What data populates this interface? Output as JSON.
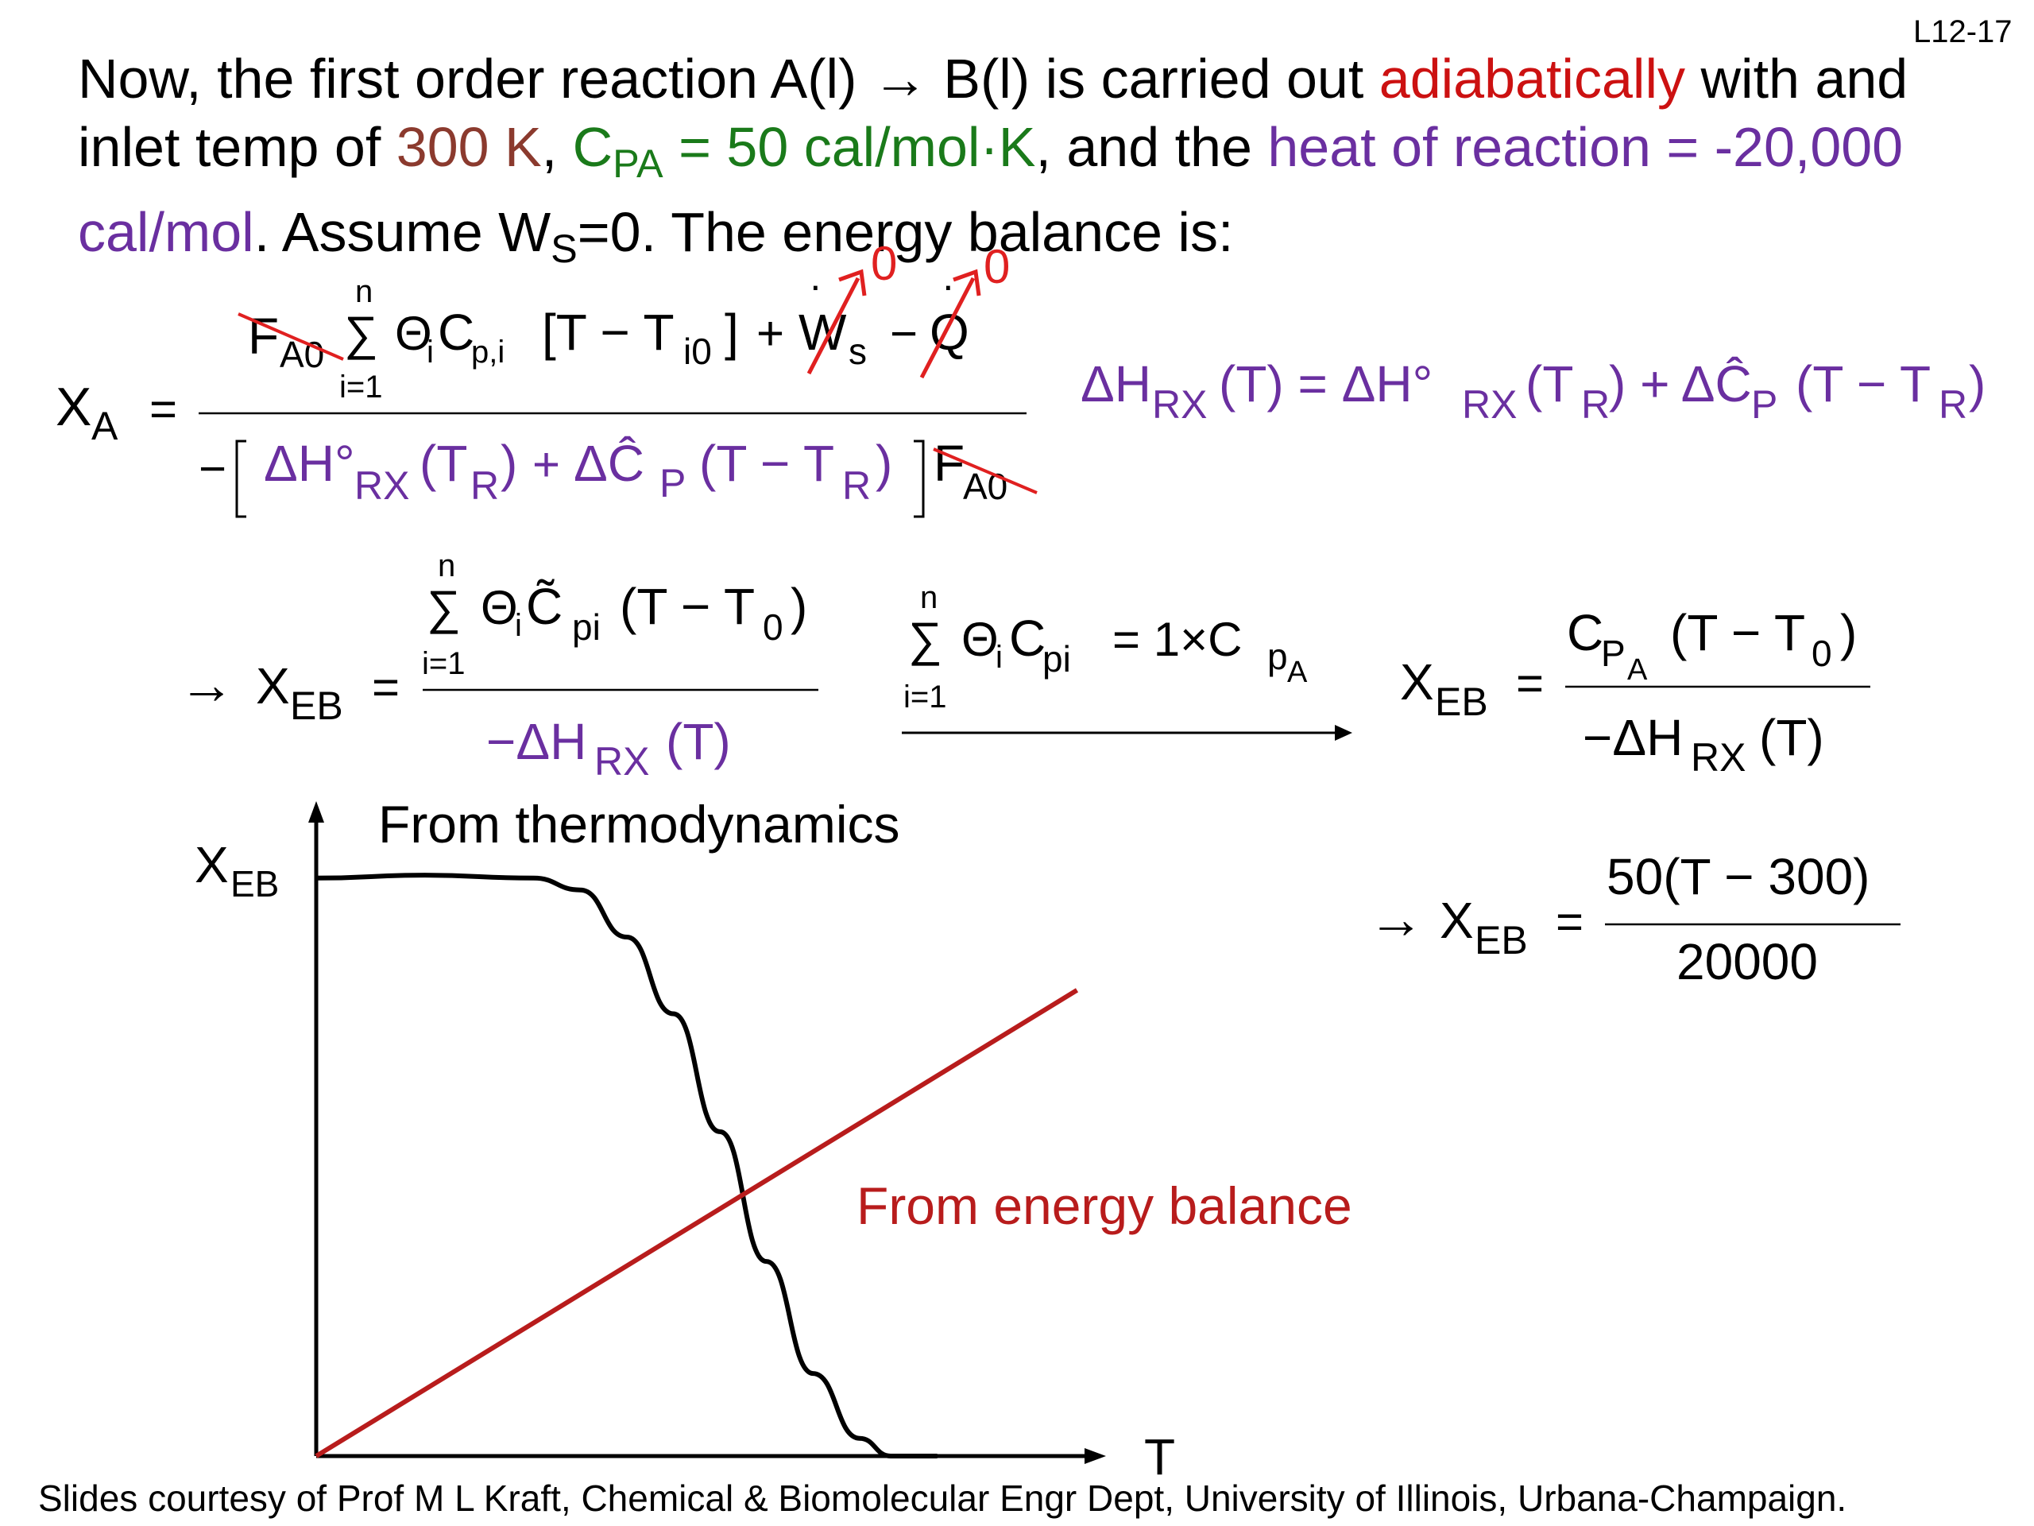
{
  "slide_number": "L12-17",
  "intro": {
    "t1": "Now, the first order reaction A(l) → B(l) is carried out ",
    "adiabatic": "adiabatically",
    "t2": " with and inlet temp of ",
    "temp": "300 K",
    "t3": ", ",
    "cpa_sym": "C",
    "cpa_sub": "PA",
    "cpa_val": " = 50 cal/mol·K",
    "t4": ", and the ",
    "heat": "heat of reaction = -20,000 cal/mol",
    "t5": ". Assume W",
    "ws_sub": "S",
    "t6": "=0. The energy balance is:"
  },
  "equations": {
    "xa_lhs": "X",
    "xa_sub": "A",
    "eq": "=",
    "fa0": "F",
    "fa0_sub": "A0",
    "sum_n": "n",
    "sum_i": "i=1",
    "sigma": "∑",
    "theta": "Θ",
    "i_sub": "i",
    "cp": "C",
    "cp_sub": "p,i",
    "bracket_T": "[T − T",
    "ti0_sub": "i0",
    "bracket_close": "]",
    "plus": "+",
    "ws": "W",
    "ws_sub": "s",
    "minus": "−",
    "q": "Q",
    "zero1": "0",
    "zero2": "0",
    "den_minus": "−",
    "dh": "ΔH°",
    "rx_sub": "RX",
    "tr_open": "(T",
    "r_sub": "R",
    "tr_close": ")",
    "plus2": "+",
    "dcp": "ΔĈ",
    "p_sub": "P",
    "t_minus_tr": "(T − T",
    "dhrx_T": "ΔH",
    "dhrx_T_rest": "(T) = ΔH°",
    "dhrx_T_rest2": "(T",
    "dhrx_T_rest3": ") + ΔĈ",
    "dhrx_T_rest4": "(T − T",
    "close_paren": ")",
    "arrow": "→",
    "xeb": "X",
    "eb_sub": "EB",
    "ctilde": "C̃",
    "pi_sub": "pi",
    "t_minus_t0": "(T − T",
    "zero_sub": "0",
    "neg_dh": "−ΔH",
    "T_paren": "(T)",
    "cpi": "C",
    "eq_one": "= 1×C",
    "pa_sub": "p",
    "pa_subsub": "A",
    "cp_a": "C",
    "p_a_sub": "P",
    "p_a_subsub": "A",
    "num_final": "50(T − 300)",
    "den_final": "20000"
  },
  "chart_data": {
    "type": "line",
    "title": "",
    "xlabel": "T",
    "ylabel": "X",
    "ylabel_sub": "EB",
    "xlim": [
      0,
      1
    ],
    "ylim": [
      0,
      1
    ],
    "series": [
      {
        "name": "From thermodynamics",
        "color": "#000000",
        "x": [
          0,
          0.14,
          0.28,
          0.34,
          0.4,
          0.46,
          0.52,
          0.58,
          0.64,
          0.7,
          0.74,
          0.8
        ],
        "y": [
          0.98,
          0.985,
          0.98,
          0.96,
          0.88,
          0.75,
          0.55,
          0.33,
          0.14,
          0.03,
          0.0,
          0.0
        ]
      },
      {
        "name": "From energy balance",
        "color": "#b81c1c",
        "x": [
          0,
          0.98
        ],
        "y": [
          0,
          0.79
        ]
      }
    ]
  },
  "footer": "Slides courtesy of Prof M L Kraft, Chemical & Biomolecular Engr Dept, University of Illinois, Urbana-Champaign."
}
